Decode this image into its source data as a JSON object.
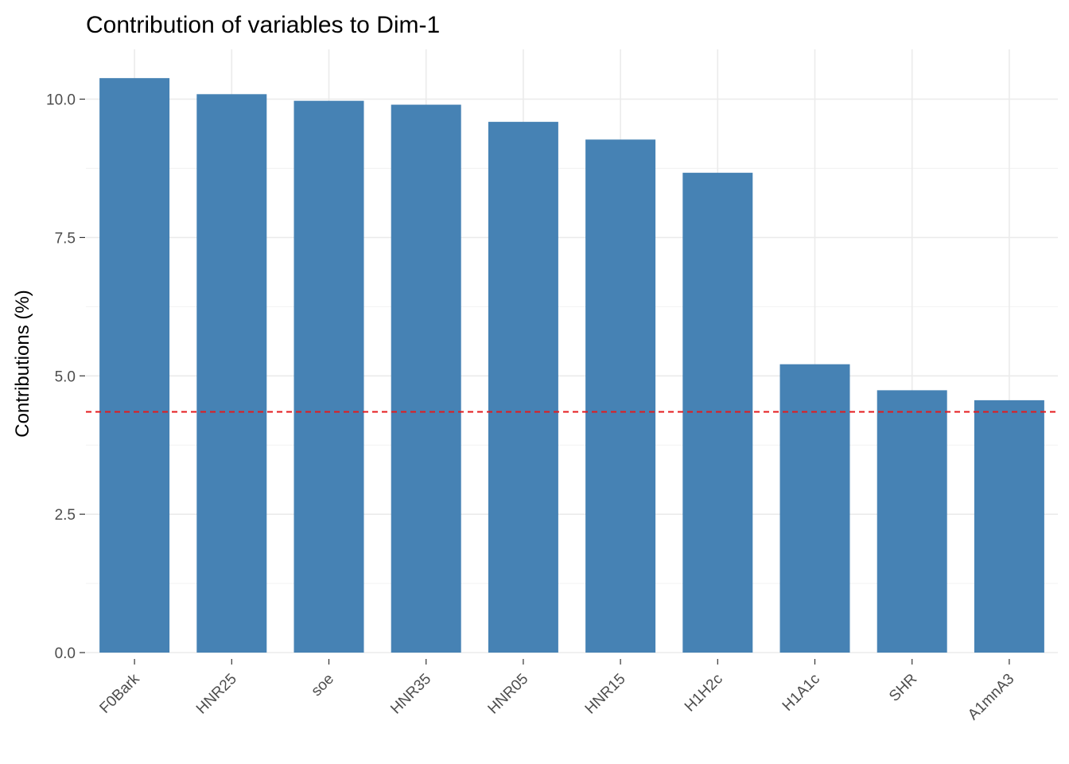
{
  "chart_data": {
    "type": "bar",
    "title": "Contribution of variables to Dim-1",
    "xlabel": "",
    "ylabel": "Contributions (%)",
    "categories": [
      "F0Bark",
      "HNR25",
      "soe",
      "HNR35",
      "HNR05",
      "HNR15",
      "H1H2c",
      "H1A1c",
      "SHR",
      "A1mnA3"
    ],
    "values": [
      10.38,
      10.09,
      9.97,
      9.9,
      9.59,
      9.27,
      8.67,
      5.21,
      4.74,
      4.56
    ],
    "yticks": [
      0.0,
      2.5,
      5.0,
      7.5,
      10.0
    ],
    "ytick_labels": [
      "0.0",
      "2.5",
      "5.0",
      "7.5",
      "10.0"
    ],
    "ylim": [
      0,
      10.9
    ],
    "reference_line": {
      "value": 4.35,
      "style": "dashed",
      "color": "#e41a1c"
    },
    "bar_color": "#4682b4",
    "grid": true,
    "legend": "none"
  }
}
